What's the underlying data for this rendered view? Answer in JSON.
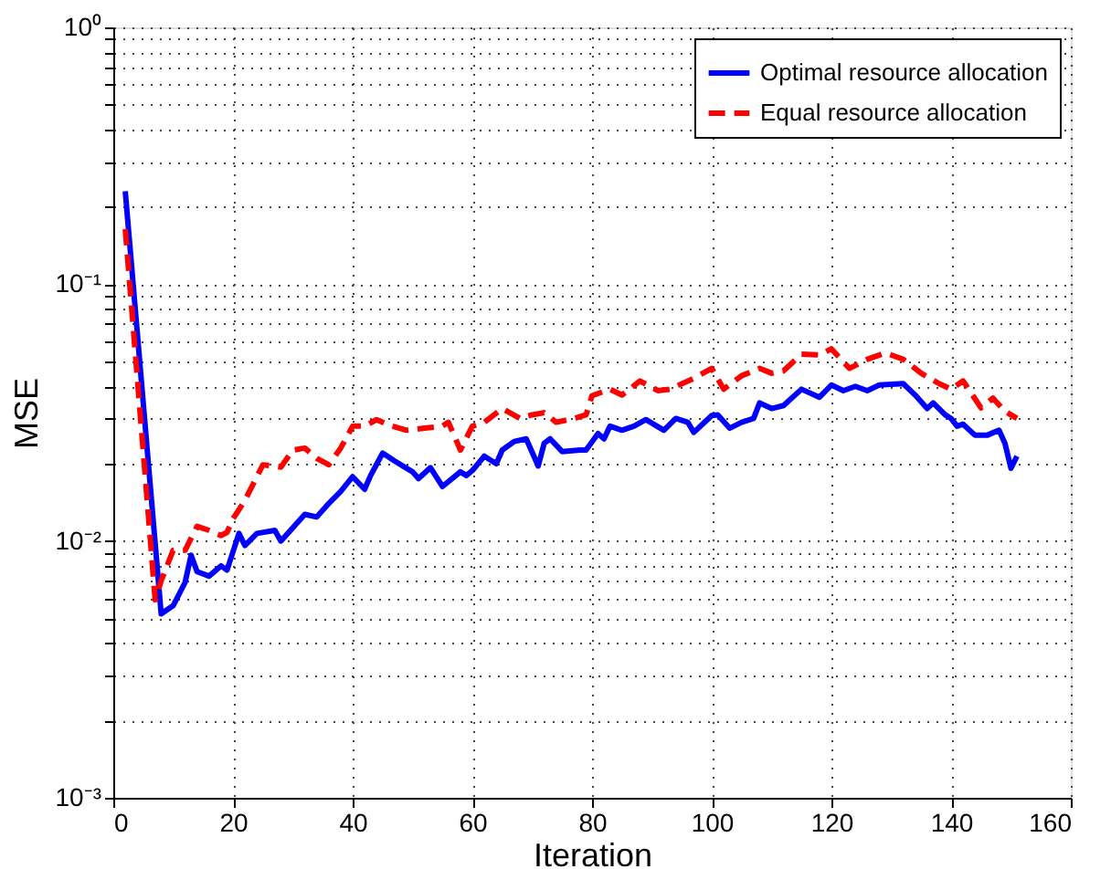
{
  "chart_data": {
    "type": "line",
    "xlabel": "Iteration",
    "ylabel": "MSE",
    "log": "y",
    "grid": true,
    "legend": "top right",
    "xlim": [
      0,
      160
    ],
    "xticks": [
      0,
      20,
      40,
      60,
      80,
      100,
      120,
      140,
      160
    ],
    "ylim": [
      0.001,
      1
    ],
    "yticks": [
      {
        "value": 0.001,
        "label": "10⁻³"
      },
      {
        "value": 0.002,
        "label": null
      },
      {
        "value": 0.003,
        "label": null
      },
      {
        "value": 0.004,
        "label": null
      },
      {
        "value": 0.005,
        "label": null
      },
      {
        "value": 0.006,
        "label": null
      },
      {
        "value": 0.007,
        "label": null
      },
      {
        "value": 0.008,
        "label": null
      },
      {
        "value": 0.009,
        "label": null
      },
      {
        "value": 0.01,
        "label": "10⁻²"
      },
      {
        "value": 0.02,
        "label": null
      },
      {
        "value": 0.03,
        "label": null
      },
      {
        "value": 0.04,
        "label": null
      },
      {
        "value": 0.05,
        "label": null
      },
      {
        "value": 0.06,
        "label": null
      },
      {
        "value": 0.07,
        "label": null
      },
      {
        "value": 0.08,
        "label": null
      },
      {
        "value": 0.09,
        "label": null
      },
      {
        "value": 0.1,
        "label": "10⁻¹"
      },
      {
        "value": 0.2,
        "label": null
      },
      {
        "value": 0.3,
        "label": null
      },
      {
        "value": 0.4,
        "label": null
      },
      {
        "value": 0.5,
        "label": null
      },
      {
        "value": 0.6,
        "label": null
      },
      {
        "value": 0.7,
        "label": null
      },
      {
        "value": 0.8,
        "label": null
      },
      {
        "value": 0.9,
        "label": null
      },
      {
        "value": 1,
        "label": "10⁰"
      }
    ],
    "series": [
      {
        "name": "Optimal resource allocation",
        "color": "#0000ff",
        "line_style": "solid",
        "x": [
          2,
          8,
          10,
          12,
          13,
          14,
          16,
          18,
          19,
          21,
          22,
          24,
          27,
          28,
          32,
          34,
          36,
          38,
          40,
          42,
          43,
          45,
          47,
          50,
          51,
          53,
          55,
          58,
          59,
          60,
          62,
          64,
          65,
          67,
          69,
          71,
          72,
          73,
          75,
          78,
          79,
          81,
          82,
          83,
          85,
          87,
          89,
          92,
          94,
          96,
          97,
          100,
          101,
          103,
          105,
          107,
          108,
          110,
          112,
          115,
          118,
          120,
          122,
          124,
          126,
          128,
          132,
          134,
          136,
          137,
          139,
          140,
          141,
          142,
          144,
          146,
          148,
          149,
          150,
          151
        ],
        "values": [
          0.23,
          0.0052,
          0.0056,
          0.0069,
          0.0088,
          0.0076,
          0.0073,
          0.008,
          0.0077,
          0.0107,
          0.0096,
          0.0107,
          0.011,
          0.01,
          0.0127,
          0.0124,
          0.014,
          0.0156,
          0.0178,
          0.0159,
          0.018,
          0.022,
          0.0205,
          0.0186,
          0.0175,
          0.0193,
          0.0163,
          0.0186,
          0.018,
          0.0188,
          0.0214,
          0.02,
          0.0226,
          0.0244,
          0.025,
          0.0196,
          0.024,
          0.025,
          0.0223,
          0.0226,
          0.0226,
          0.0262,
          0.025,
          0.028,
          0.027,
          0.028,
          0.0297,
          0.027,
          0.03,
          0.029,
          0.0265,
          0.0308,
          0.031,
          0.0275,
          0.029,
          0.03,
          0.0345,
          0.0328,
          0.0337,
          0.039,
          0.0363,
          0.0405,
          0.0385,
          0.04,
          0.0385,
          0.0405,
          0.041,
          0.037,
          0.0328,
          0.0345,
          0.031,
          0.03,
          0.028,
          0.0285,
          0.0258,
          0.0258,
          0.027,
          0.024,
          0.0192,
          0.0214
        ]
      },
      {
        "name": "Equal resource allocation",
        "color": "#ff0000",
        "line_style": "dashed",
        "x": [
          2,
          7,
          8,
          10,
          12,
          14,
          16,
          18,
          19,
          20,
          22,
          25,
          28,
          30,
          32,
          34,
          36,
          38,
          40,
          42,
          44,
          46,
          49,
          52,
          55,
          56,
          58,
          60,
          62,
          65,
          68,
          70,
          72,
          74,
          77,
          79,
          80,
          83,
          85,
          88,
          91,
          93,
          97,
          100,
          102,
          105,
          108,
          110,
          112,
          115,
          118,
          120,
          123,
          126,
          129,
          132,
          135,
          138,
          140,
          142,
          145,
          147,
          149,
          151
        ],
        "values": [
          0.164,
          0.0059,
          0.007,
          0.0092,
          0.0092,
          0.0114,
          0.011,
          0.0105,
          0.0108,
          0.0122,
          0.0144,
          0.0198,
          0.0194,
          0.0226,
          0.023,
          0.021,
          0.0198,
          0.023,
          0.028,
          0.028,
          0.0297,
          0.0283,
          0.027,
          0.0275,
          0.028,
          0.029,
          0.0226,
          0.028,
          0.029,
          0.0328,
          0.03,
          0.031,
          0.0316,
          0.029,
          0.03,
          0.031,
          0.0368,
          0.039,
          0.037,
          0.042,
          0.0385,
          0.039,
          0.043,
          0.047,
          0.039,
          0.044,
          0.047,
          0.045,
          0.046,
          0.0534,
          0.053,
          0.056,
          0.047,
          0.051,
          0.054,
          0.051,
          0.045,
          0.041,
          0.039,
          0.042,
          0.033,
          0.036,
          0.032,
          0.03
        ]
      }
    ]
  }
}
